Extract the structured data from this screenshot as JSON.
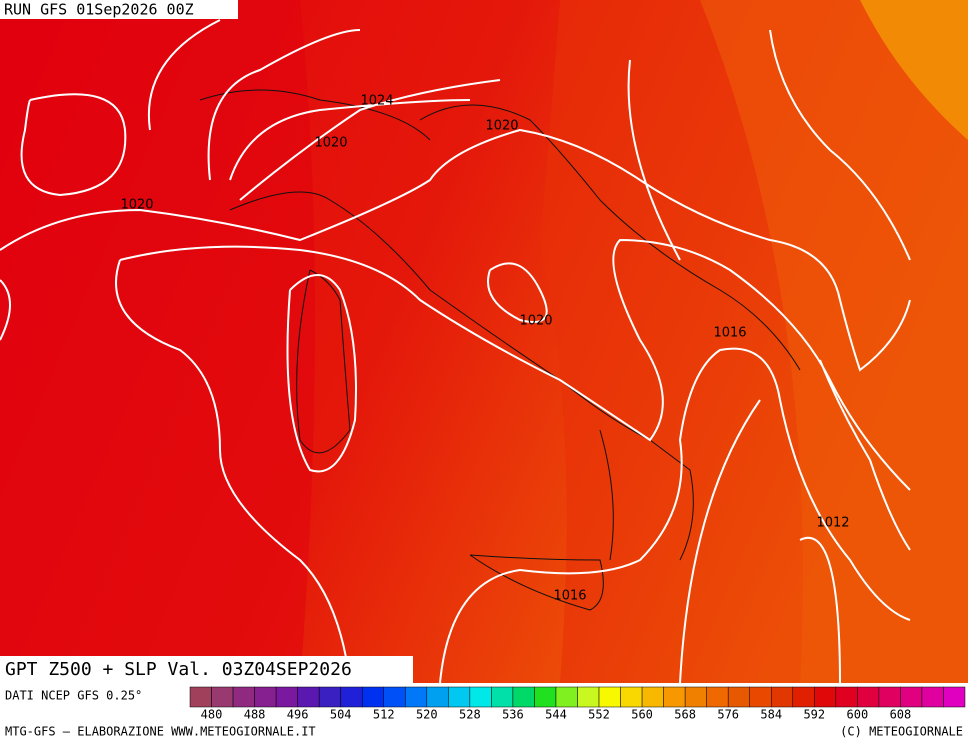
{
  "header": {
    "run": "RUN GFS 01Sep2026 00Z"
  },
  "title": "GPT Z500 + SLP Val. 03Z04SEP2026",
  "isobar_labels": [
    "1024",
    "1020",
    "1020",
    "1020",
    "1020",
    "1016",
    "1016",
    "1012"
  ],
  "colorbar": {
    "labels": [
      480,
      488,
      496,
      504,
      512,
      520,
      528,
      536,
      544,
      552,
      560,
      568,
      576,
      584,
      592,
      600,
      608
    ],
    "colors": [
      "#a0405a",
      "#983a70",
      "#902a80",
      "#862090",
      "#7a18a0",
      "#5a18b0",
      "#3a20c0",
      "#2020d8",
      "#0030f0",
      "#0050f8",
      "#0078f8",
      "#00a0f0",
      "#00c8f0",
      "#00e8e8",
      "#00e0a8",
      "#00d868",
      "#20e020",
      "#80f020",
      "#c8f820",
      "#f8f800",
      "#f8d800",
      "#f8b800",
      "#f89800",
      "#f08000",
      "#f06800",
      "#e85800",
      "#e84800",
      "#e03800",
      "#e02000",
      "#e00808",
      "#e00020",
      "#e00040",
      "#e00060",
      "#e00080",
      "#e000a0",
      "#e000c0"
    ]
  },
  "footer": {
    "source": "DATI NCEP GFS 0.25°",
    "credit": "MTG-GFS — ELABORAZIONE WWW.METEOGIORNALE.IT",
    "copyright": "(C) METEOGIORNALE"
  }
}
